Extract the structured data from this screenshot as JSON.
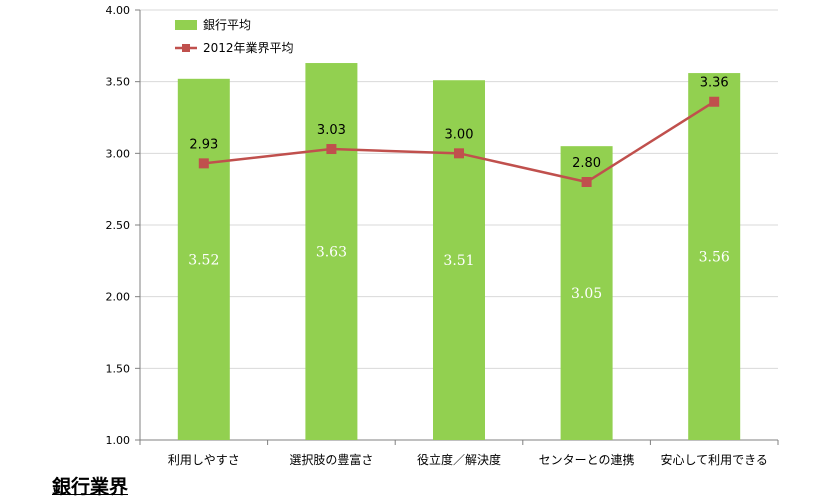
{
  "colors": {
    "bar": "#92d050",
    "line": "#c0504d",
    "grid": "#d9d9d9",
    "axis": "#808080"
  },
  "footer": {
    "title": "銀行業界"
  },
  "chart_data": {
    "type": "bar",
    "title": "",
    "xlabel": "",
    "ylabel": "",
    "ylim": [
      1.0,
      4.0
    ],
    "yticks": [
      "1.00",
      "1.50",
      "2.00",
      "2.50",
      "3.00",
      "3.50",
      "4.00"
    ],
    "grid": true,
    "legend_position": "top-left",
    "categories": [
      "利用しやすさ",
      "選択肢の豊富さ",
      "役立度／解決度",
      "センターとの連携",
      "安心して利用できる"
    ],
    "series": [
      {
        "name": "銀行平均",
        "kind": "bar",
        "values": [
          3.52,
          3.63,
          3.51,
          3.05,
          3.56
        ],
        "labels": [
          "3.52",
          "3.63",
          "3.51",
          "3.05",
          "3.56"
        ]
      },
      {
        "name": "2012年業界平均",
        "kind": "line",
        "values": [
          2.93,
          3.03,
          3.0,
          2.8,
          3.36
        ],
        "labels": [
          "2.93",
          "3.03",
          "3.00",
          "2.80",
          "3.36"
        ]
      }
    ]
  }
}
